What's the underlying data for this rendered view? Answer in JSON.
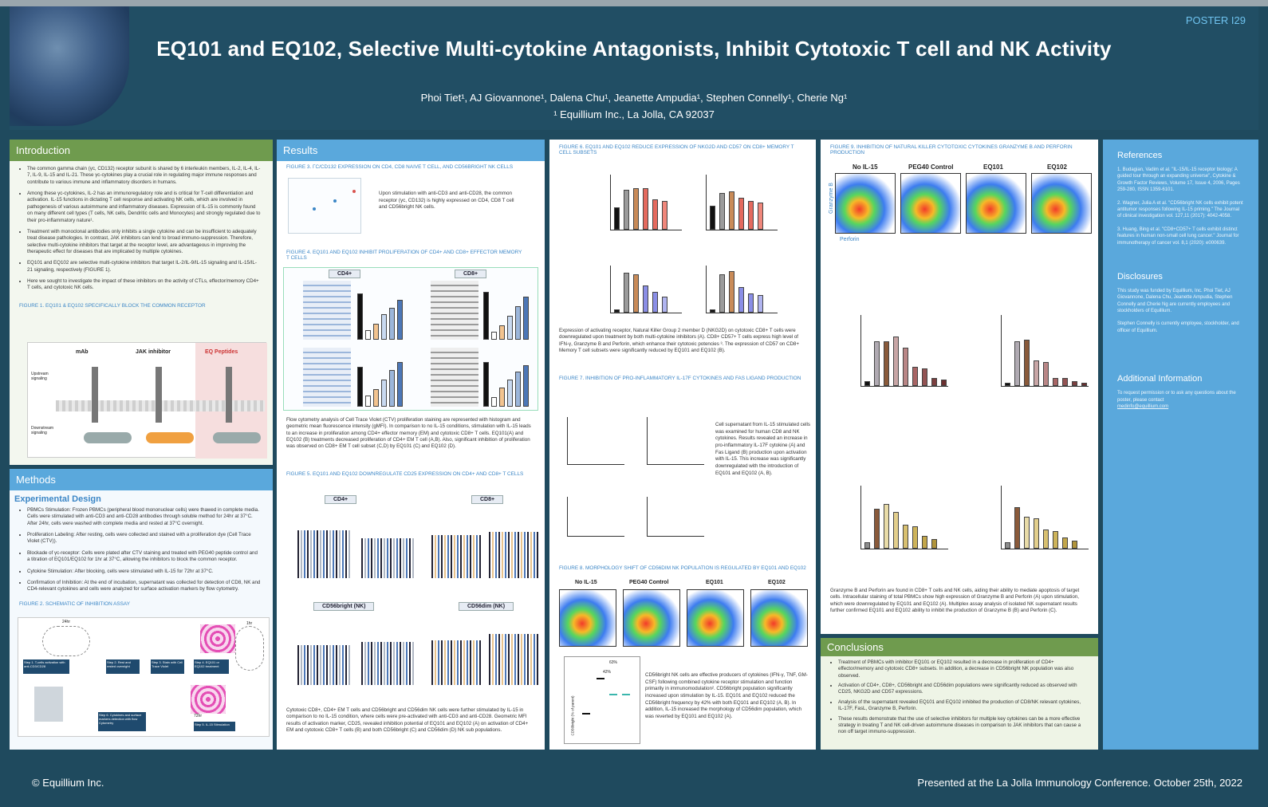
{
  "header": {
    "poster_number": "POSTER I29",
    "title": "EQ101 and EQ102, Selective Multi-cytokine Antagonists, Inhibit Cytotoxic T cell and NK Activity",
    "authors": "Phoi Tiet¹, AJ Giovannone¹, Dalena Chu¹, Jeanette Ampudia¹, Stephen Connelly¹, Cherie Ng¹",
    "affiliation": "¹ Equillium Inc., La Jolla, CA 92037"
  },
  "introduction": {
    "heading": "Introduction",
    "bullets": [
      "The common gamma chain (γc, CD132) receptor subunit is shared by 6 interleukin members, IL-2, IL-4, IL-7, IL-9, IL-15 and IL-21. These γc-cytokines play a crucial role in regulating major immune responses and contribute to various immune and inflammatory disorders in humans.",
      "Among these γc-cytokines, IL-2 has an immunoregulatory role and is critical for T-cell differentiation and activation. IL-15 functions in dictating T cell response and activating NK cells, which are involved in pathogenesis of various autoimmune and inflammatory diseases. Expression of IL-15 is commonly found on many different cell types (T cells, NK cells, Dendritic cells and Monocytes) and strongly regulated due to their pro-inflammatory nature¹.",
      "Treatment with monoclonal antibodies only inhibits a single cytokine and can be insufficient to adequately treat disease pathologies. In contrast, JAK inhibitors can lend to broad immuno-suppression. Therefore, selective multi-cytokine inhibitors that target at the receptor level, are advantageous in improving the therapeutic effect for diseases that are implicated by multiple cytokines.",
      "EQ101 and EQ102 are selective multi-cytokine inhibitors that target IL-2/IL-9/IL-15 signaling and IL-15/IL-21 signaling, respectively (FIGURE 1).",
      "Here we sought to investigate the impact of these inhibitors on the activity of CTLs, effector/memory CD4+ T cells, and cytotoxic NK cells."
    ],
    "figure1_caption": "FIGURE 1. EQ101 & EQ102 SPECIFICALLY BLOCK THE COMMON RECEPTOR",
    "figure1_labels": [
      "mAb",
      "JAK inhibitor",
      "EQ Peptides",
      "Upstream signaling",
      "Downstream signaling"
    ]
  },
  "methods": {
    "heading": "Methods",
    "subheading": "Experimental Design",
    "bullets": [
      "PBMCs Stimulation: Frozen PBMCs (peripheral blood mononuclear cells) were thawed in complete media. Cells were stimulated with anti-CD3 and anti-CD28 antibodies through soluble method for 24hr at 37°C. After 24hr, cells were washed with complete media and rested at 37°C overnight.",
      "Proliferation Labeling: After resting, cells were collected and stained with a proliferation dye (Cell Trace Violet (CTV)).",
      "Blockade of γc-receptor: Cells were plated after CTV staining and treated with PEG40 peptide control and a titration of EQ101/EQ102 for 1hr at 37°C, allowing the inhibitors to block the common receptor.",
      "Cytokine Stimulation: After blocking, cells were stimulated with IL-15 for 72hr at 37°C.",
      "Confirmation of Inhibition: At the end of incubation, supernatant was collected for detection of CD8, NK and CD4-relevant cytokines and cells were analyzed for surface activation markers by flow cytometry."
    ],
    "figure2_caption": "FIGURE 2. SCHEMATIC OF INHIBITION ASSAY",
    "figure2_steps": [
      "Step 1. T-cells activation with anti-CD3/CD28",
      "Step 2. Rest and rested overnight",
      "Step 3. Stain with Cell Trace Violet",
      "Step 4. EQ101 or EQ102 treatment",
      "Step 5. IL-15 Stimulation",
      "Step 6. Cytokines and surface markers detection with flow Cytometry"
    ],
    "figure2_time": [
      "24hr",
      "1hr",
      "72hr"
    ]
  },
  "results": {
    "heading": "Results",
    "fig3_caption": "FIGURE 3. γc/CD132 EXPRESSION ON CD4, CD8 NAIVE T CELL, AND CD56BRIGHT NK CELLS",
    "fig3_text": "Upon stimulation with anti-CD3 and anti-CD28, the common receptor (γc, CD132) is highly expressed on CD4, CD8 T cell and CD56bright NK cells.",
    "fig4_caption": "FIGURE 4. EQ101 AND EQ102 INHIBIT PROLIFERATION OF CD4+ AND CD8+ EFFECTOR MEMORY T CELLS",
    "fig4_panels": [
      "CD4+",
      "CD8+"
    ],
    "fig4_text": "Flow cytometry analysis of Cell Trace Violet (CTV) proliferation staining are represented with histogram and geometric mean fluorescence intensity (gMFI). In comparison to no IL-15 conditions, stimulation with IL-15 leads to an increase in proliferation among CD4+ effector memory (EM) and cytotoxic CD8+ T cells. EQ101(A) and EQ102 (B) treatments decreased proliferation of CD4+ EM T cell (A,B). Also, significant inhibition of proliferation was observed on CD8+ EM T cell subset (C,D) by EQ101 (C) and EQ102 (D).",
    "fig5_caption": "FIGURE 5. EQ101 AND EQ102 DOWNREGULATE CD25 EXPRESSION ON CD4+ AND CD8+ T CELLS",
    "fig5_panels": [
      "CD4+",
      "CD8+",
      "CD56bright (NK)",
      "CD56dim (NK)"
    ],
    "fig5_text": "Cytotoxic CD8+, CD4+ EM T cells and CD56bright and CD56dim NK cells were further stimulated by IL-15 in comparison to no IL-15 condition, where cells were pre-activated with anti-CD3 and anti-CD28. Geometric MFI results of activation marker, CD25, revealed inhibition potential of EQ101 and EQ102 (A) on activation of CD4+ EM and cytotoxic CD8+ T cells (B) and both CD56bright (C) and CD56dim (D) NK sub populations."
  },
  "middle": {
    "fig6_caption": "FIGURE 6. EQ101 AND EQ102 REDUCE EXPRESSION OF NKG2D AND CD57 ON CD8+ MEMORY T CELL SUBSETS",
    "fig6_text": "Expression of activating receptor, Natural Killer Group 2 member D (NKG2D) on cytotoxic CD8+ T cells were downregulated upon treatment by both multi-cytokine inhibitors (A). CD8+ CD57+ T cells express high level of IFN-γ, Granzyme B and Perforin, which enhance their cytotoxic potencies ³. The expression of CD57 on CD8+ Memory T cell subsets were significantly reduced by EQ101 and EQ102 (B).",
    "fig7_caption": "FIGURE 7. INHIBITION OF PRO-INFLAMMATORY IL-17F CYTOKINES AND FAS LIGAND PRODUCTION",
    "fig7_text": "Cell supernatant from IL-15 stimulated cells was examined for human CD8 and NK cytokines. Results revealed an increase in pro-inflammatory IL-17F cytokine (A) and Fas Ligand (B) production upon activation with IL-15. This increase was significantly downregulated with the introduction of EQ101 and EQ102 (A, B).",
    "fig8_caption": "FIGURE 8. MORPHOLOGY SHIFT OF CD56DIM NK POPULATION IS REGULATED BY EQ101 AND EQ102",
    "fig8_panels": [
      "No IL-15",
      "PEG40 Control",
      "EQ101",
      "EQ102"
    ],
    "fig8_pct": "63%",
    "fig8_pct2": "42%",
    "fig8_ylabel": "CD56bright (% of parent)",
    "fig8_text": "CD56bright NK cells are effective producers of cytokines (IFN-γ, TNF, GM-CSF) following combined cytokine receptor stimulation and function primarily in immunomodulation². CD56bright population significantly increased upon stimulation by IL-15. EQ101 and EQ102 reduced the CD56bright frequency by 42% with both EQ101 and EQ102 (A, B). In addition, IL-15 increased the morphology of CD56dim population, which was reverted by EQ101 and EQ102 (A)."
  },
  "right": {
    "fig9_caption": "FIGURE 9. INHIBITION OF NATURAL KILLER CYTOTOXIC CYTOKINES GRANZYME B AND PERFORIN PRODUCTION",
    "fig9_panels": [
      "No IL-15",
      "PEG40 Control",
      "EQ101",
      "EQ102"
    ],
    "fig9_axes": [
      "Granzyme B",
      "Perforin"
    ],
    "fig9_text": "Granzyme B and Perforin are found in CD8+ T cells and NK cells, aiding their ability to mediate apoptosis of target cells. Intracellular staining of total PBMCs show high expression of Granzyme B and Perforin (A) upon stimulation, which were downregulated by EQ101 and EQ102 (A). Multiplex assay analysis of isolated NK supernatant results further confirmed EQ101 and EQ102 ability to inhibit the production of Granzyme B (B) and Perforin (C).",
    "conclusions_heading": "Conclusions",
    "conclusions": [
      "Treatment of PBMCs with inhibitor EQ101 or EQ102 resulted in a decrease in proliferation of CD4+ effector/memory and cytotoxic CD8+ subsets. In addition, a decrease in CD56bright NK population was also observed.",
      "Activation of CD4+, CD8+, CD56bright and CD56dim populations were significantly reduced as observed with CD25, NKG2D and CD57 expressions.",
      "Analysis of the supernatant revealed EQ101 and EQ102 inhibited the production of CD8/NK relevant cytokines, IL-17F, FasL, Granzyme B, Perforin.",
      "These results demonstrate that the use of selective inhibitors for multiple key cytokines can be a more effective strategy in treating T and NK cell-driven autoimmune diseases in comparison to JAK inhibitors that can cause a non off target immuno-suppression."
    ]
  },
  "sidebar": {
    "references_heading": "References",
    "references": [
      "1. Budagian, Vadim et al. \"IL-15/IL-15 receptor biology: A guided tour through an expanding universe\", Cytokine & Growth Factor Reviews, Volume 17, Issue 4, 2006, Pages 259-280, ISSN 1359-6101.",
      "2. Wagner, Julia A et al. \"CD56bright NK cells exhibit potent antitumor responses following IL-15 priming.\" The Journal of clinical investigation vol. 127,11 (2017): 4042-4058.",
      "3. Huang, Bing et al. \"CD8+CD57+ T cells exhibit distinct features in human non-small cell lung cancer.\" Journal for immunotherapy of cancer vol. 8,1 (2020): e000639."
    ],
    "disclosures_heading": "Disclosures",
    "disclosures": "This study was funded by Equillium, Inc. Phoi Tiet, AJ Giovannone, Dalena Chu, Jeanette Ampudia, Stephen Connelly and Cherie Ng are currently employees and stockholders of Equillium.",
    "disclosures2": "Stephen Connelly is currently employee, stockholder, and officer of Equillium.",
    "additional_heading": "Additional Information",
    "additional_text": "To request permission or to ask any questions about the poster, please contact",
    "additional_email": "medinfo@equillium.com"
  },
  "footer": {
    "copyright": "© Equillium Inc.",
    "presented": "Presented at the La Jolla Immunology Conference. October 25th, 2022"
  },
  "colors": {
    "header_bg": "#214e64",
    "intro_green": "#6f9b4e",
    "results_blue": "#5aa8dc",
    "caption_blue": "#3b86c6"
  }
}
